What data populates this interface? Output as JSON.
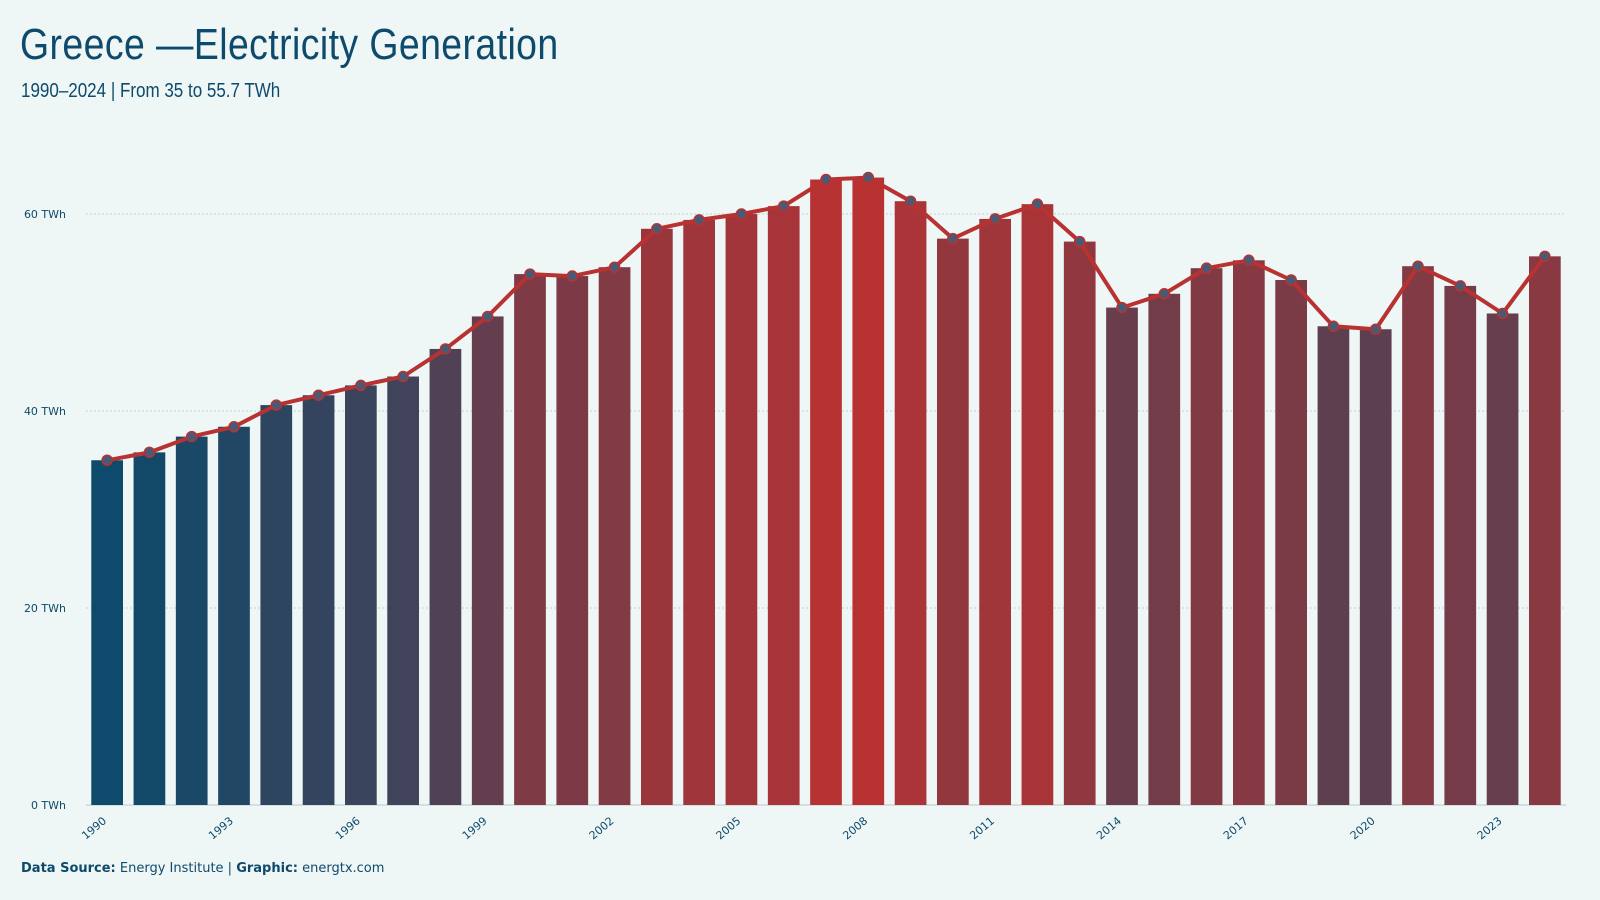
{
  "header": {
    "title": "Greece —Electricity Generation",
    "subtitle": "1990–2024 | From 35 to 55.7 TWh"
  },
  "footer": {
    "source_label": "Data Source:",
    "source_value": "Energy Institute |",
    "graphic_label": "Graphic:",
    "graphic_value": "energtx.com"
  },
  "colors": {
    "low": "#0d4a6b",
    "high": "#b83232",
    "line": "#b83232",
    "marker": "#4a5a75",
    "grid": "#b8c8cc",
    "text": "#0d4a6b"
  },
  "chart_data": {
    "type": "bar",
    "unit": "TWh",
    "x": [
      1990,
      1991,
      1992,
      1993,
      1994,
      1995,
      1996,
      1997,
      1998,
      1999,
      2000,
      2001,
      2002,
      2003,
      2004,
      2005,
      2006,
      2007,
      2008,
      2009,
      2010,
      2011,
      2012,
      2013,
      2014,
      2015,
      2016,
      2017,
      2018,
      2019,
      2020,
      2021,
      2022,
      2023,
      2024
    ],
    "values": [
      35.0,
      35.8,
      37.4,
      38.4,
      40.6,
      41.6,
      42.6,
      43.5,
      46.3,
      49.6,
      53.9,
      53.7,
      54.6,
      58.5,
      59.4,
      60.0,
      60.8,
      63.5,
      63.7,
      61.3,
      57.5,
      59.5,
      61.0,
      57.2,
      50.5,
      51.9,
      54.5,
      55.3,
      53.3,
      48.6,
      48.3,
      54.7,
      52.7,
      49.9,
      55.7
    ],
    "x_tick_labels": [
      "1990",
      "1993",
      "1996",
      "1999",
      "2002",
      "2005",
      "2008",
      "2011",
      "2014",
      "2017",
      "2020",
      "2023"
    ],
    "y_ticks": [
      0,
      20,
      40,
      60
    ],
    "y_tick_labels": [
      "0 TWh",
      "20 TWh",
      "40 TWh",
      "60 TWh"
    ],
    "ylim": [
      0,
      65.5
    ],
    "overlay": "line-with-markers",
    "grid": "horizontal"
  }
}
